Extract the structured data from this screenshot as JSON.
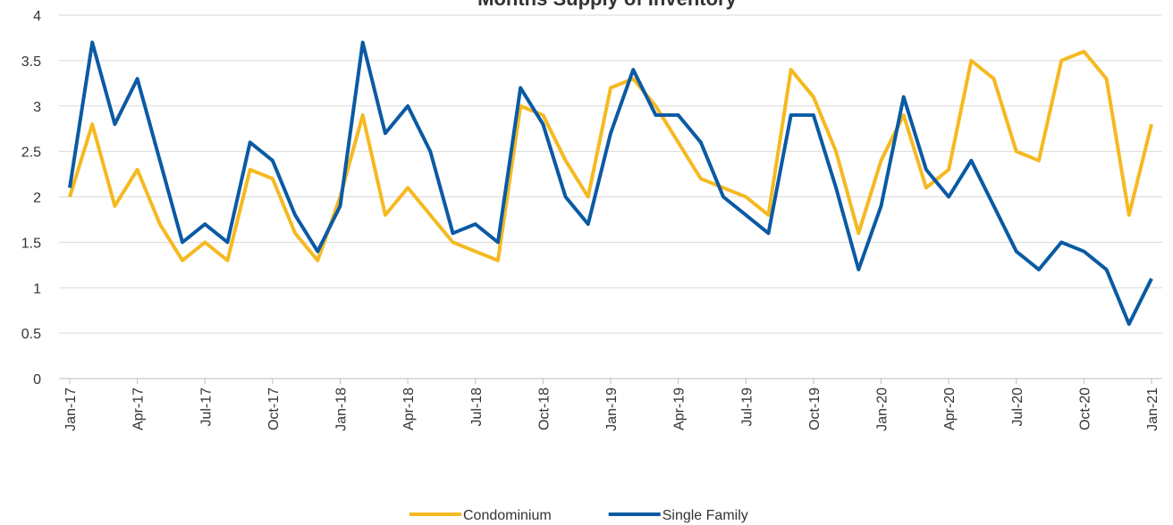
{
  "chart_data": {
    "type": "line",
    "title": "Months Supply of Inventory",
    "categories": [
      "Jan-17",
      null,
      null,
      "Apr-17",
      null,
      null,
      "Jul-17",
      null,
      null,
      "Oct-17",
      null,
      null,
      "Jan-18",
      null,
      null,
      "Apr-18",
      null,
      null,
      "Jul-18",
      null,
      null,
      "Oct-18",
      null,
      null,
      "Jan-19",
      null,
      null,
      "Apr-19",
      null,
      null,
      "Jul-19",
      null,
      null,
      "Oct-19",
      null,
      null,
      "Jan-20",
      null,
      null,
      "Apr-20",
      null,
      null,
      "Jul-20",
      null,
      null,
      "Oct-20",
      null,
      null,
      "Jan-21"
    ],
    "series": [
      {
        "name": "Condominium",
        "color": "#f5b921",
        "values": [
          2.0,
          2.8,
          1.9,
          2.3,
          1.7,
          1.3,
          1.5,
          1.3,
          2.3,
          2.2,
          1.6,
          1.3,
          2.0,
          2.9,
          1.8,
          2.1,
          1.8,
          1.5,
          1.4,
          1.3,
          3.0,
          2.9,
          2.4,
          2.0,
          3.2,
          3.3,
          3.0,
          2.6,
          2.2,
          2.1,
          2.0,
          1.8,
          3.4,
          3.1,
          2.5,
          1.6,
          2.4,
          2.9,
          2.1,
          2.3,
          3.5,
          3.3,
          2.5,
          2.4,
          3.5,
          3.6,
          3.3,
          1.8,
          2.8
        ]
      },
      {
        "name": "Single Family",
        "color": "#0b5aa4",
        "values": [
          2.1,
          3.7,
          2.8,
          3.3,
          2.4,
          1.5,
          1.7,
          1.5,
          2.6,
          2.4,
          1.8,
          1.4,
          1.9,
          3.7,
          2.7,
          3.0,
          2.5,
          1.6,
          1.7,
          1.5,
          3.2,
          2.8,
          2.0,
          1.7,
          2.7,
          3.4,
          2.9,
          2.9,
          2.6,
          2.0,
          1.8,
          1.6,
          2.9,
          2.9,
          2.1,
          1.2,
          1.9,
          3.1,
          2.3,
          2.0,
          2.4,
          1.9,
          1.4,
          1.2,
          1.5,
          1.4,
          1.2,
          0.6,
          1.1
        ]
      }
    ],
    "ylim": [
      0,
      4
    ],
    "yticks": [
      0,
      0.5,
      1,
      1.5,
      2,
      2.5,
      3,
      3.5,
      4
    ],
    "grid": true,
    "legend": "bottom"
  }
}
